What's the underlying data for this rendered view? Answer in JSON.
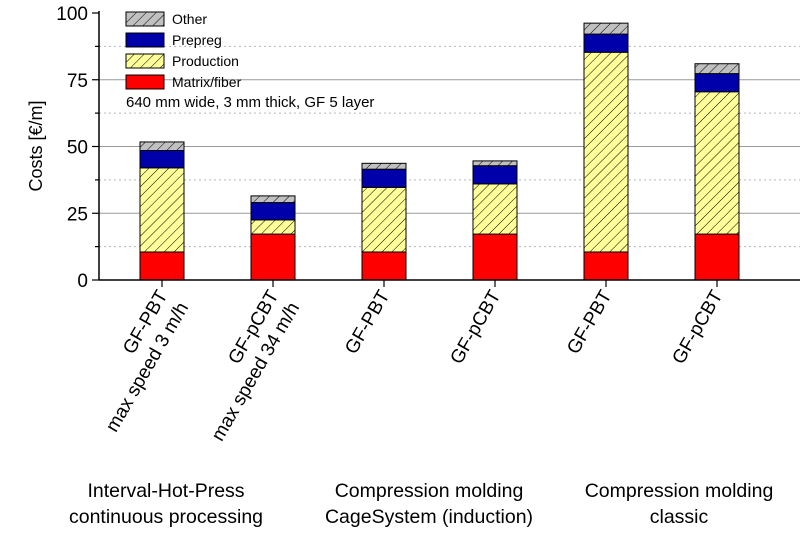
{
  "chart_data": {
    "type": "bar",
    "stacked": true,
    "ylabel": "Costs [€/m]",
    "ylim": [
      0,
      100
    ],
    "yticks": [
      0,
      25,
      50,
      75,
      100
    ],
    "grid": true,
    "legend_placement": "top-left",
    "note": "640 mm wide, 3 mm thick, GF 5 layer",
    "categories": [
      {
        "line1": "GF-PBT",
        "line2": "max speed 3 m/h"
      },
      {
        "line1": "GF-pCBT",
        "line2": "max speed 34 m/h"
      },
      {
        "line1": "GF-PBT",
        "line2": ""
      },
      {
        "line1": "GF-pCBT",
        "line2": ""
      },
      {
        "line1": "GF-PBT",
        "line2": ""
      },
      {
        "line1": "GF-pCBT",
        "line2": ""
      }
    ],
    "groups": [
      {
        "line1": "Interval-Hot-Press",
        "line2": "continuous processing"
      },
      {
        "line1": "Compression molding",
        "line2": "CageSystem (induction)"
      },
      {
        "line1": "Compression molding",
        "line2": "classic"
      }
    ],
    "series": [
      {
        "name": "Matrix/fiber",
        "color": "#ff0000",
        "pattern": "solid",
        "values": [
          10.5,
          17.2,
          10.5,
          17.2,
          10.5,
          17.2
        ]
      },
      {
        "name": "Production",
        "color": "#ffff99",
        "pattern": "hatched",
        "values": [
          31.5,
          5.3,
          24.2,
          18.8,
          74.8,
          53.3
        ]
      },
      {
        "name": "Prepreg",
        "color": "#0000aa",
        "pattern": "solid",
        "values": [
          6.5,
          6.5,
          6.8,
          6.8,
          6.8,
          6.8
        ]
      },
      {
        "name": "Other",
        "color": "#c0c0c0",
        "pattern": "hatched",
        "values": [
          3.2,
          2.5,
          2.2,
          1.8,
          4.1,
          3.7
        ]
      }
    ]
  }
}
